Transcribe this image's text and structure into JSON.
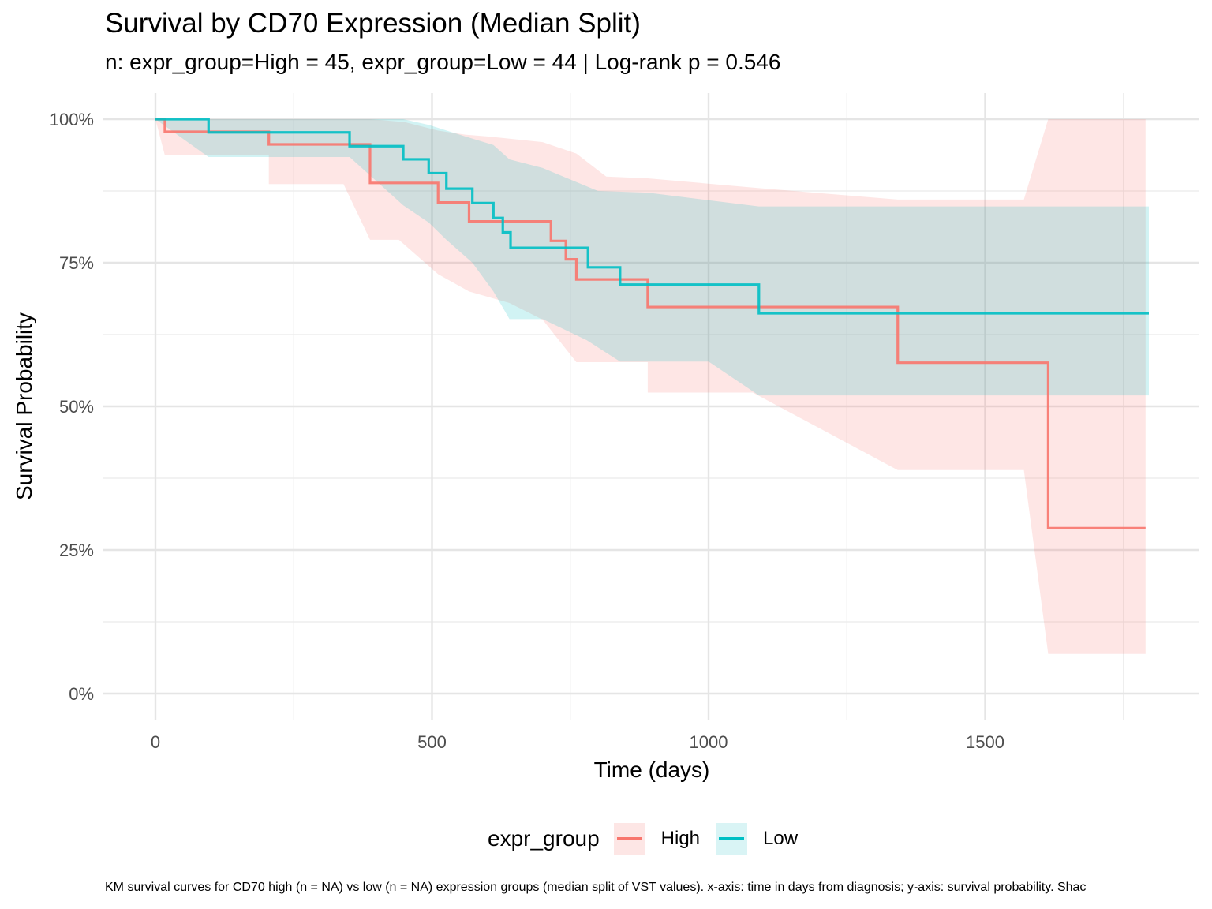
{
  "title": "Survival by CD70 Expression (Median Split)",
  "subtitle": "n: expr_group=High = 45, expr_group=Low = 44 | Log-rank p = 0.546",
  "caption": "KM survival curves for CD70 high (n = NA) vs low (n = NA) expression groups (median split of VST values). x-axis: time in days from diagnosis; y-axis: survival probability. Shac",
  "legend": {
    "title": "expr_group",
    "items": [
      {
        "label": "High",
        "color": "#F8766D",
        "fill": "#FDE6E5"
      },
      {
        "label": "Low",
        "color": "#00BFC4",
        "fill": "#D9F4F5"
      }
    ]
  },
  "chart_data": {
    "type": "line",
    "subtype": "kaplan-meier step with confidence ribbons",
    "title": "Survival by CD70 Expression (Median Split)",
    "subtitle": "n: expr_group=High = 45, expr_group=Low = 44 | Log-rank p = 0.546",
    "xlabel": "Time (days)",
    "ylabel": "Survival Probability",
    "xlim": [
      -90,
      1890
    ],
    "ylim": [
      -0.05,
      1.05
    ],
    "x_ticks": [
      0,
      500,
      1000,
      1500
    ],
    "x_tick_labels": [
      "0",
      "500",
      "1000",
      "1500"
    ],
    "y_ticks": [
      0,
      0.25,
      0.5,
      0.75,
      1.0
    ],
    "y_tick_labels": [
      "0%",
      "25%",
      "50%",
      "75%",
      "100%"
    ],
    "grid": true,
    "legend_position": "bottom",
    "series": [
      {
        "name": "High",
        "color": "#F8766D",
        "steps": [
          [
            0,
            1.0
          ],
          [
            17,
            0.978
          ],
          [
            205,
            0.956
          ],
          [
            388,
            0.889
          ],
          [
            511,
            0.855
          ],
          [
            567,
            0.822
          ],
          [
            715,
            0.788
          ],
          [
            742,
            0.756
          ],
          [
            761,
            0.721
          ],
          [
            890,
            0.673
          ],
          [
            1342,
            0.576
          ],
          [
            1614,
            0.288
          ]
        ],
        "end_time": 1790,
        "ci_upper": [
          [
            0,
            1.0
          ],
          [
            205,
            1.0
          ],
          [
            388,
            1.0
          ],
          [
            450,
            0.995
          ],
          [
            511,
            0.98
          ],
          [
            560,
            0.973
          ],
          [
            600,
            0.97
          ],
          [
            640,
            0.966
          ],
          [
            700,
            0.96
          ],
          [
            761,
            0.94
          ],
          [
            815,
            0.9
          ],
          [
            890,
            0.897
          ],
          [
            1091,
            0.88
          ],
          [
            1342,
            0.86
          ],
          [
            1570,
            0.86
          ],
          [
            1614,
            1.0
          ],
          [
            1790,
            1.0
          ]
        ],
        "ci_lower": [
          [
            0,
            1.0
          ],
          [
            17,
            0.937
          ],
          [
            205,
            0.937
          ],
          [
            205,
            0.887
          ],
          [
            340,
            0.887
          ],
          [
            388,
            0.79
          ],
          [
            440,
            0.79
          ],
          [
            511,
            0.73
          ],
          [
            567,
            0.7
          ],
          [
            640,
            0.68
          ],
          [
            700,
            0.651
          ],
          [
            761,
            0.577
          ],
          [
            890,
            0.577
          ],
          [
            890,
            0.524
          ],
          [
            1080,
            0.524
          ],
          [
            1342,
            0.389
          ],
          [
            1570,
            0.389
          ],
          [
            1614,
            0.069
          ],
          [
            1790,
            0.069
          ]
        ]
      },
      {
        "name": "Low",
        "color": "#00BFC4",
        "steps": [
          [
            0,
            1.0
          ],
          [
            96,
            0.977
          ],
          [
            351,
            0.953
          ],
          [
            448,
            0.93
          ],
          [
            494,
            0.906
          ],
          [
            526,
            0.879
          ],
          [
            573,
            0.854
          ],
          [
            611,
            0.828
          ],
          [
            628,
            0.803
          ],
          [
            642,
            0.776
          ],
          [
            782,
            0.742
          ],
          [
            840,
            0.712
          ],
          [
            1091,
            0.662
          ]
        ],
        "end_time": 1796,
        "ci_upper": [
          [
            0,
            1.0
          ],
          [
            96,
            1.0
          ],
          [
            448,
            1.0
          ],
          [
            494,
            0.99
          ],
          [
            560,
            0.97
          ],
          [
            611,
            0.955
          ],
          [
            640,
            0.93
          ],
          [
            700,
            0.915
          ],
          [
            745,
            0.897
          ],
          [
            800,
            0.875
          ],
          [
            890,
            0.872
          ],
          [
            1091,
            0.848
          ],
          [
            1796,
            0.848
          ]
        ],
        "ci_lower": [
          [
            0,
            1.0
          ],
          [
            96,
            0.934
          ],
          [
            351,
            0.934
          ],
          [
            448,
            0.85
          ],
          [
            494,
            0.82
          ],
          [
            526,
            0.79
          ],
          [
            573,
            0.75
          ],
          [
            611,
            0.7
          ],
          [
            640,
            0.652
          ],
          [
            700,
            0.652
          ],
          [
            780,
            0.615
          ],
          [
            840,
            0.578
          ],
          [
            1000,
            0.578
          ],
          [
            1091,
            0.519
          ],
          [
            1796,
            0.519
          ]
        ]
      }
    ]
  }
}
